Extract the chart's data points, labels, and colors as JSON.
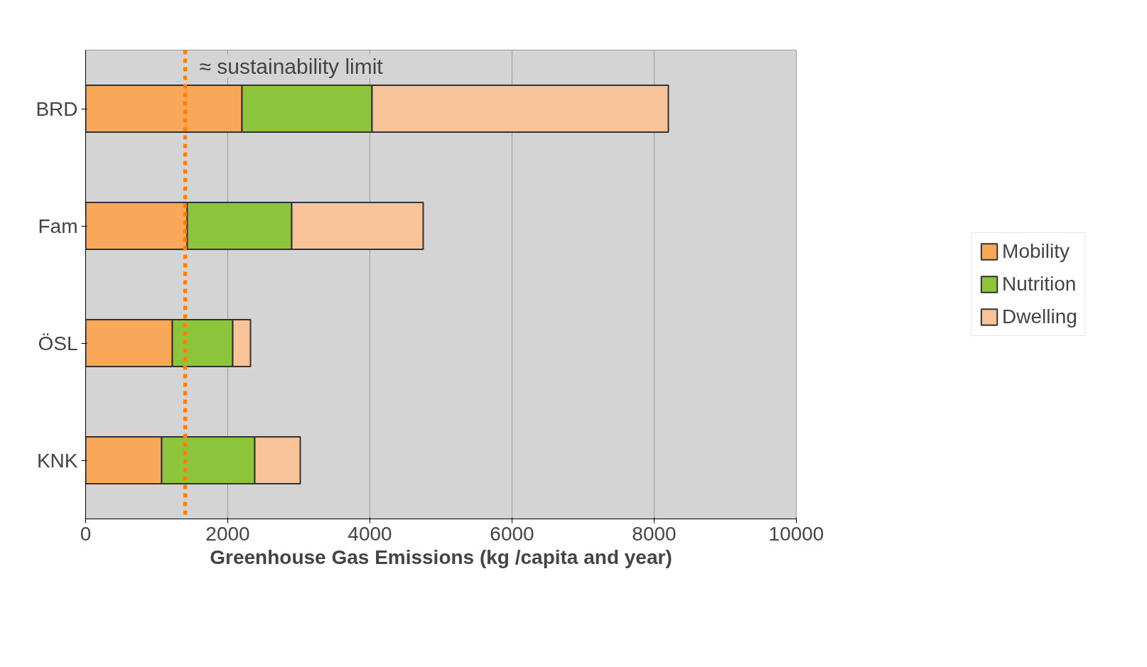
{
  "chart_data": {
    "type": "bar",
    "orientation": "horizontal",
    "stacked": true,
    "categories": [
      "BRD",
      "Fam",
      "ÖSL",
      "KNK"
    ],
    "series": [
      {
        "name": "Mobility",
        "color": "#f9a85a",
        "values": [
          2200,
          1430,
          1220,
          1070
        ]
      },
      {
        "name": "Nutrition",
        "color": "#8cc43c",
        "values": [
          1830,
          1470,
          850,
          1310
        ]
      },
      {
        "name": "Dwelling",
        "color": "#f9c39a",
        "values": [
          4170,
          1850,
          250,
          640
        ]
      }
    ],
    "xlabel": "Greenhouse Gas Emissions (kg /capita and year)",
    "xlim": [
      0,
      10000
    ],
    "xticks": [
      0,
      2000,
      4000,
      6000,
      8000,
      10000
    ],
    "grid": "x",
    "legend": "right",
    "ref_lines": [
      {
        "axis": "x",
        "value": 1400,
        "label": "≈ sustainability limit",
        "color": "#ff7f0e",
        "line_style": "dashed"
      }
    ]
  }
}
